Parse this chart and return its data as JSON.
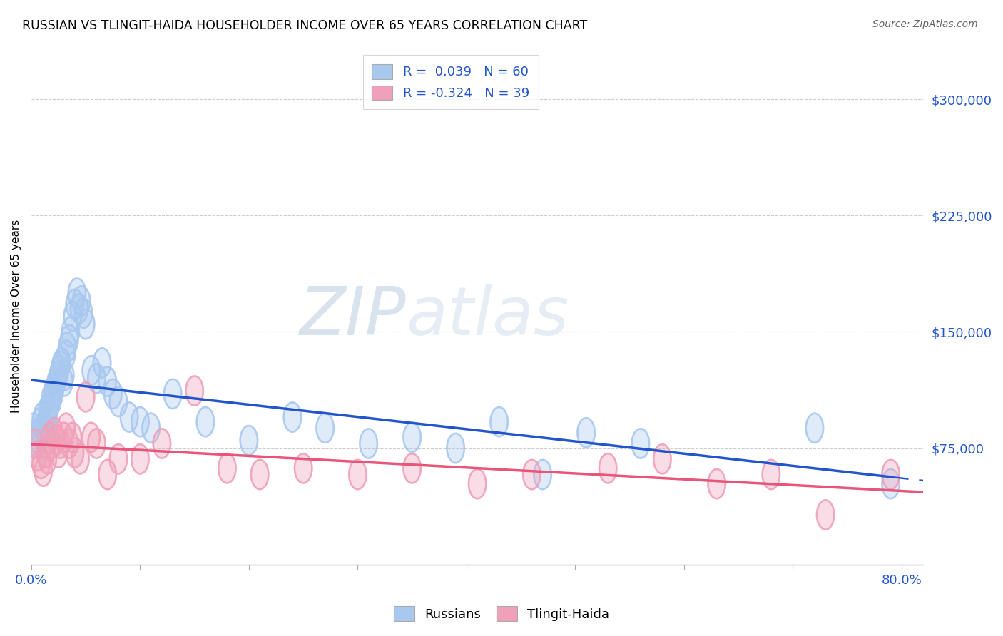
{
  "title": "RUSSIAN VS TLINGIT-HAIDA HOUSEHOLDER INCOME OVER 65 YEARS CORRELATION CHART",
  "source": "Source: ZipAtlas.com",
  "ylabel": "Householder Income Over 65 years",
  "ytick_labels": [
    "$75,000",
    "$150,000",
    "$225,000",
    "$300,000"
  ],
  "ytick_values": [
    75000,
    150000,
    225000,
    300000
  ],
  "ylim": [
    0,
    320000
  ],
  "xlim": [
    0.0,
    0.82
  ],
  "russian_color": "#A8C8F0",
  "tlingit_color": "#F0A0B8",
  "russian_line_color": "#2255CC",
  "tlingit_line_color": "#E8547A",
  "watermark_zip": "ZIP",
  "watermark_atlas": "atlas",
  "russians_x": [
    0.002,
    0.004,
    0.006,
    0.008,
    0.009,
    0.01,
    0.011,
    0.012,
    0.013,
    0.014,
    0.015,
    0.016,
    0.017,
    0.018,
    0.019,
    0.02,
    0.021,
    0.022,
    0.023,
    0.024,
    0.025,
    0.026,
    0.027,
    0.028,
    0.03,
    0.031,
    0.032,
    0.033,
    0.035,
    0.036,
    0.038,
    0.04,
    0.042,
    0.044,
    0.046,
    0.048,
    0.05,
    0.055,
    0.06,
    0.065,
    0.07,
    0.075,
    0.08,
    0.09,
    0.1,
    0.11,
    0.13,
    0.16,
    0.2,
    0.24,
    0.27,
    0.31,
    0.35,
    0.39,
    0.43,
    0.47,
    0.51,
    0.56,
    0.72,
    0.79
  ],
  "russians_y": [
    88000,
    82000,
    78000,
    85000,
    92000,
    95000,
    88000,
    90000,
    87000,
    93000,
    100000,
    96000,
    102000,
    108000,
    105000,
    112000,
    110000,
    115000,
    118000,
    120000,
    122000,
    125000,
    128000,
    130000,
    118000,
    122000,
    135000,
    140000,
    145000,
    150000,
    160000,
    168000,
    175000,
    165000,
    170000,
    162000,
    155000,
    125000,
    120000,
    130000,
    118000,
    110000,
    105000,
    95000,
    92000,
    88000,
    110000,
    92000,
    80000,
    95000,
    88000,
    78000,
    82000,
    75000,
    92000,
    58000,
    85000,
    78000,
    88000,
    52000
  ],
  "tlingit_x": [
    0.003,
    0.006,
    0.009,
    0.011,
    0.013,
    0.015,
    0.017,
    0.019,
    0.021,
    0.023,
    0.025,
    0.027,
    0.03,
    0.032,
    0.035,
    0.038,
    0.04,
    0.045,
    0.05,
    0.055,
    0.06,
    0.07,
    0.08,
    0.1,
    0.12,
    0.15,
    0.18,
    0.21,
    0.25,
    0.3,
    0.35,
    0.41,
    0.46,
    0.53,
    0.58,
    0.63,
    0.68,
    0.73,
    0.79
  ],
  "tlingit_y": [
    78000,
    70000,
    65000,
    60000,
    72000,
    68000,
    82000,
    78000,
    85000,
    80000,
    72000,
    78000,
    82000,
    88000,
    78000,
    82000,
    72000,
    68000,
    108000,
    82000,
    78000,
    58000,
    68000,
    68000,
    78000,
    112000,
    62000,
    58000,
    62000,
    58000,
    62000,
    52000,
    58000,
    62000,
    68000,
    52000,
    58000,
    32000,
    58000
  ],
  "legend_r1": "R =  0.039   N = 60",
  "legend_r2": "R = -0.324   N = 39"
}
